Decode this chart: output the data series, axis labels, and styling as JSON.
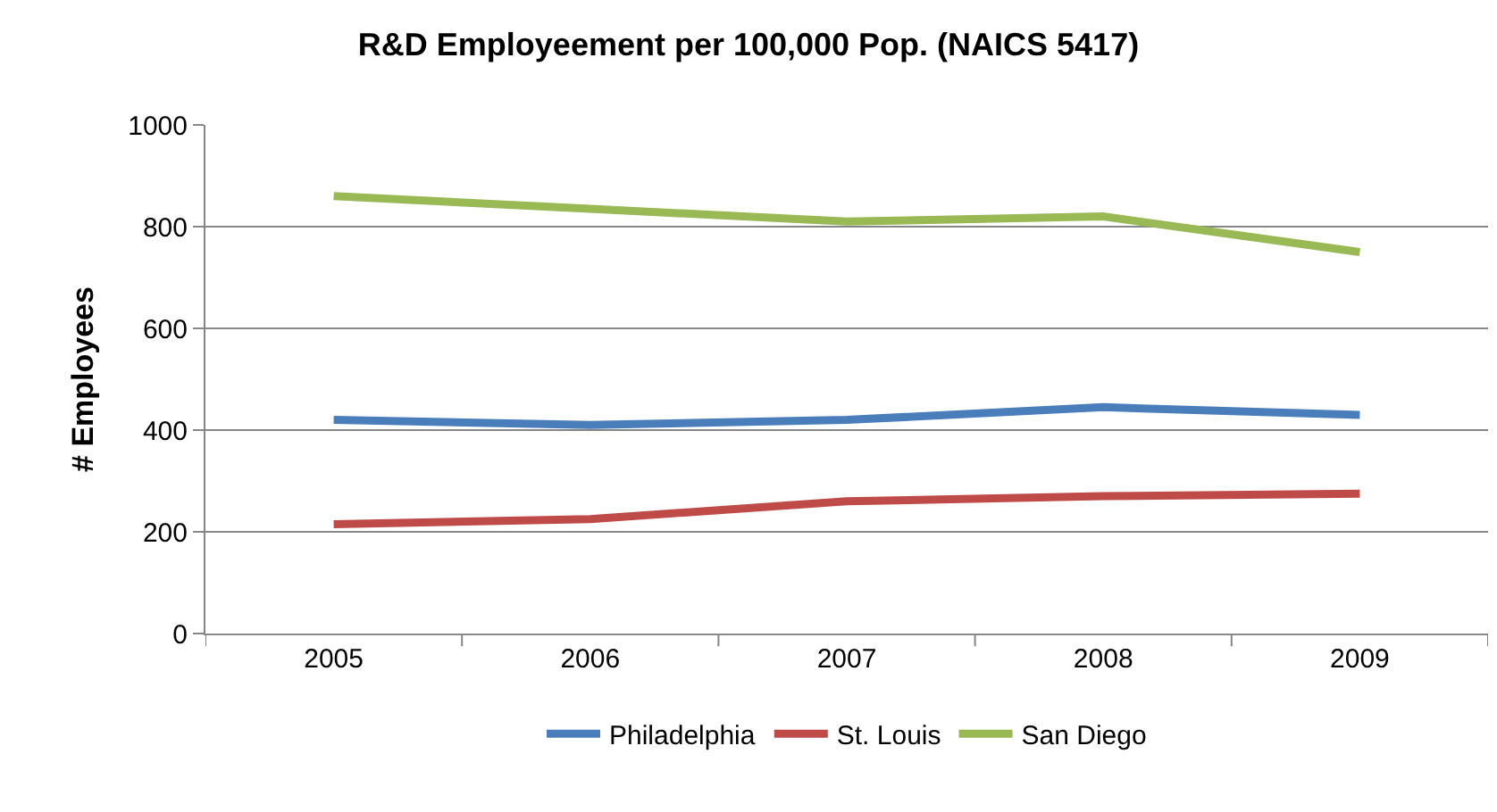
{
  "chart_data": {
    "type": "line",
    "title": "R&D Employeement per 100,000 Pop. (NAICS 5417)",
    "ylabel": "# Employees",
    "categories": [
      "2005",
      "2006",
      "2007",
      "2008",
      "2009"
    ],
    "series": [
      {
        "name": "Philadelphia",
        "color": "#4a7ebb",
        "values": [
          420,
          410,
          420,
          445,
          430
        ]
      },
      {
        "name": "St. Louis",
        "color": "#be4b48",
        "values": [
          215,
          225,
          260,
          270,
          275
        ]
      },
      {
        "name": "San Diego",
        "color": "#98b954",
        "values": [
          860,
          835,
          810,
          820,
          750
        ]
      }
    ],
    "ylim": [
      0,
      1000
    ],
    "yticks": [
      0,
      200,
      400,
      600,
      800,
      1000
    ],
    "grid": "y",
    "legend": "bottom",
    "marker": "none",
    "line_style": "solid"
  }
}
